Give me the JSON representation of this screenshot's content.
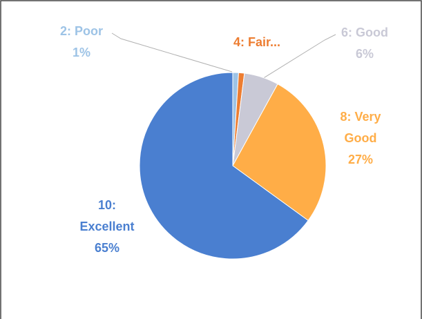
{
  "chart_data": {
    "type": "pie",
    "categories": [
      "2: Poor",
      "4: Fair...",
      "6: Good",
      "8: Very Good",
      "10: Excellent"
    ],
    "values": [
      1,
      1,
      6,
      27,
      65
    ],
    "value_labels": [
      "1%",
      null,
      "6%",
      "27%",
      "65%"
    ],
    "colors": [
      "#9dc3e6",
      "#ed7d31",
      "#c9c9d6",
      "#ffad47",
      "#4a7fd0"
    ]
  }
}
